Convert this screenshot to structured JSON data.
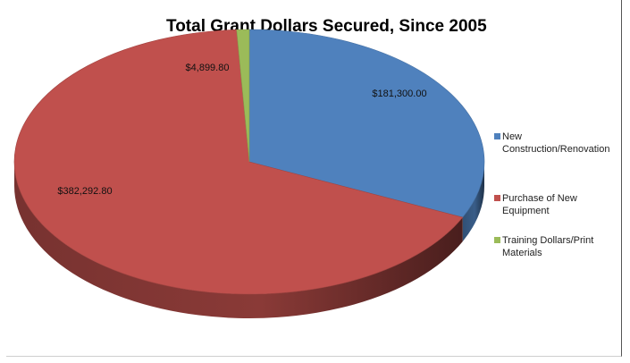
{
  "chart_data": {
    "type": "pie",
    "title": "Total Grant Dollars Secured, Since 2005",
    "categories": [
      "New Construction/Renovation",
      "Purchase of New Equipment",
      "Training Dollars/Print Materials"
    ],
    "values": [
      181300.0,
      382292.8,
      4899.8
    ],
    "value_labels": [
      "$181,300.00",
      "$382,292.80",
      "$4,899.80"
    ],
    "colors": [
      "#4F81BD",
      "#C0504D",
      "#9BBB59"
    ],
    "legend_position": "right",
    "style": "3d"
  }
}
